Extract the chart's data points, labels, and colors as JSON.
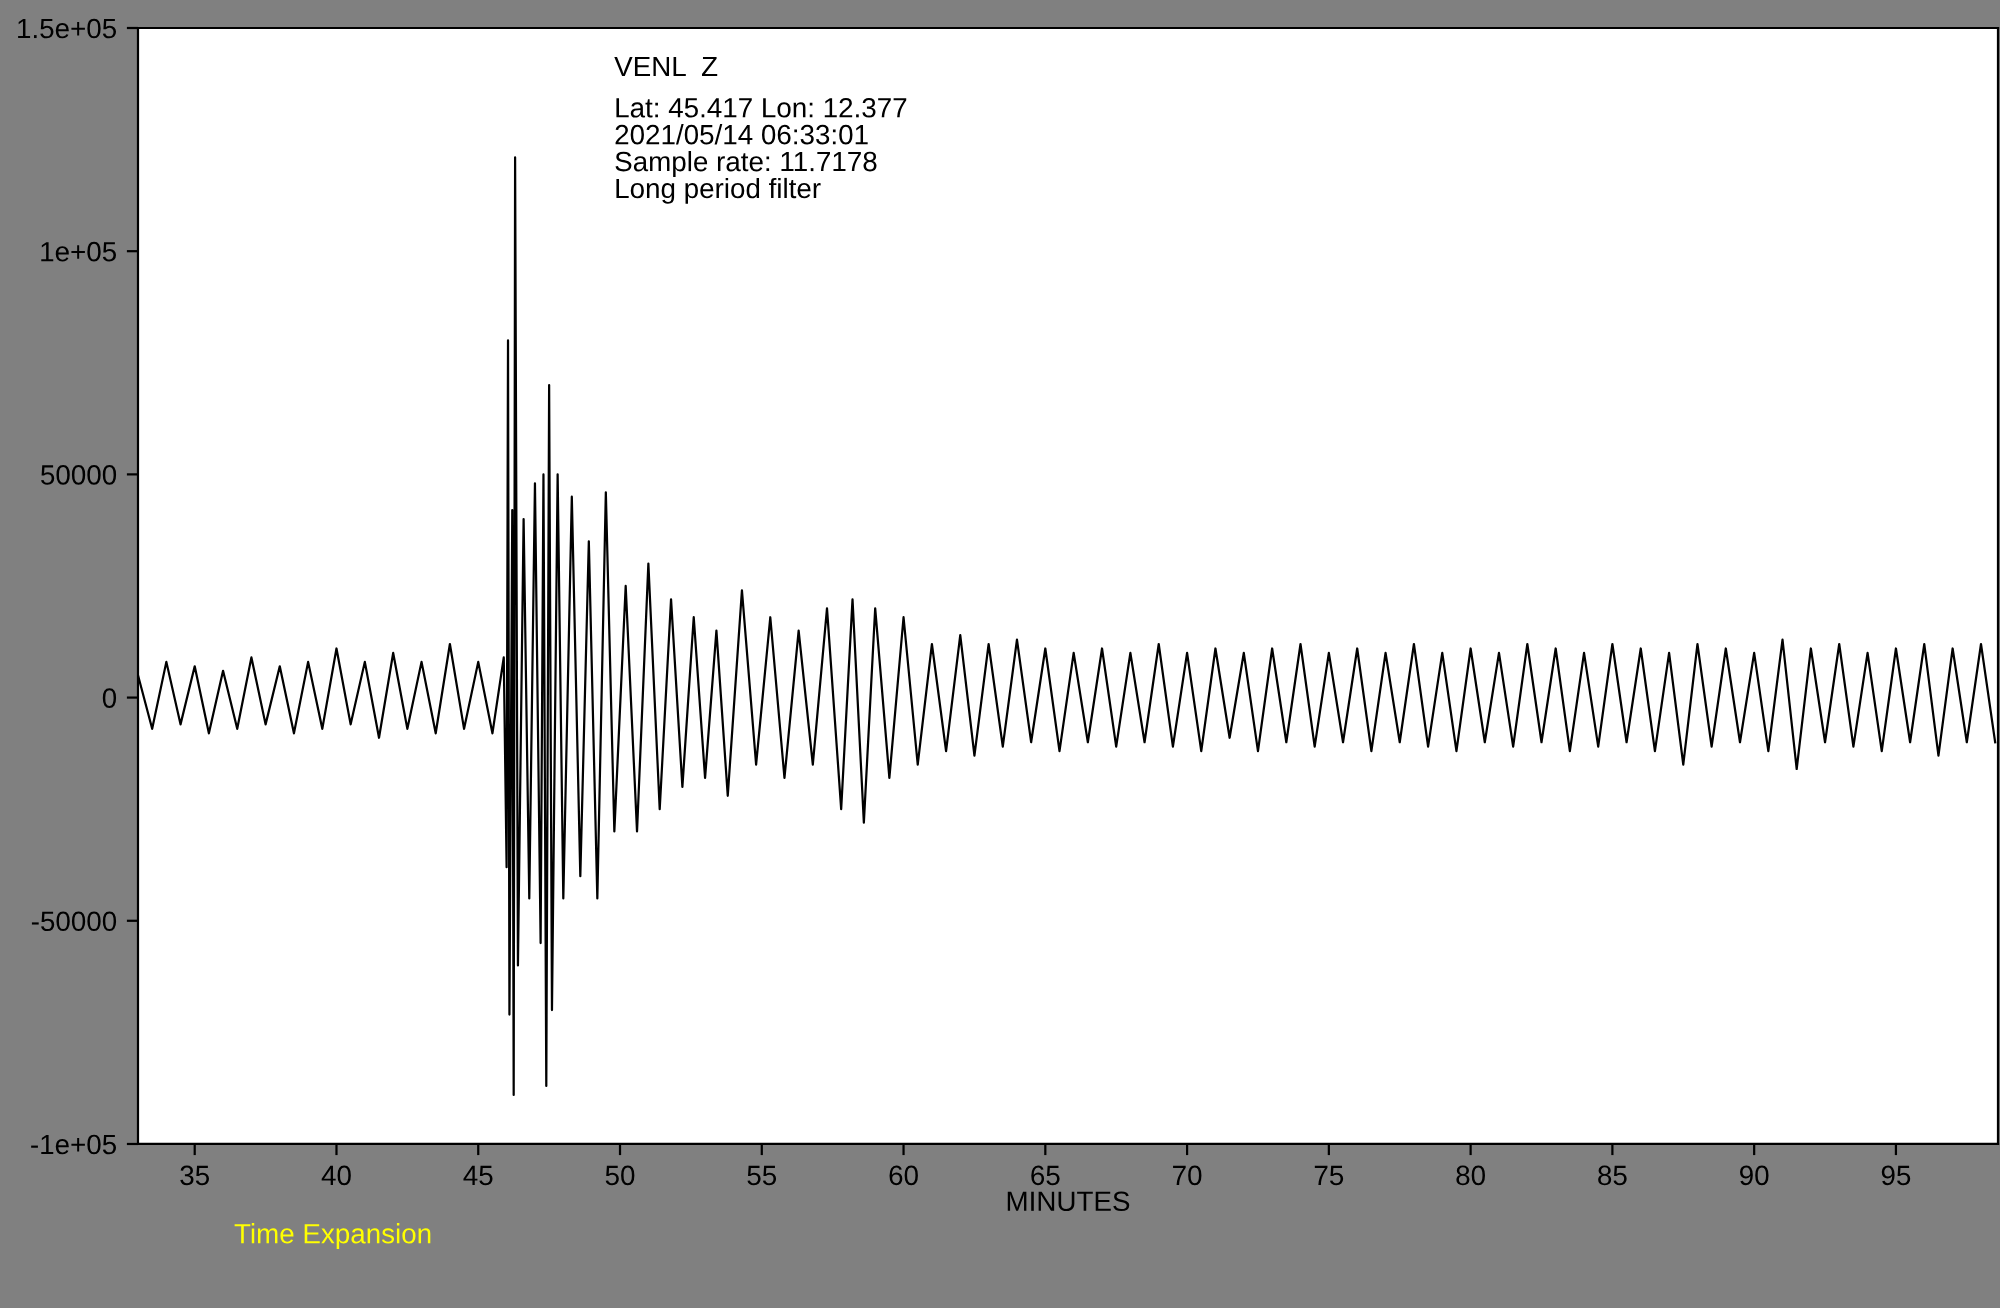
{
  "chart_data": {
    "type": "line",
    "title": "VENL  Z",
    "subtitle": "Lat: 45.417 Lon: 12.377\n2021/05/14 06:33:01\nSample rate: 11.7178\nLong period filter",
    "xlabel": "MINUTES",
    "annotations": [
      "Time Expansion"
    ],
    "xlim": [
      33,
      98.6
    ],
    "xticks": [
      35,
      40,
      45,
      50,
      55,
      60,
      65,
      70,
      75,
      80,
      85,
      90,
      95
    ],
    "ylim": [
      -100000,
      150000
    ],
    "yticks": [
      {
        "value": -100000,
        "label": "-1e+05"
      },
      {
        "value": -50000,
        "label": "-50000"
      },
      {
        "value": 0,
        "label": "0"
      },
      {
        "value": 50000,
        "label": "50000"
      },
      {
        "value": 100000,
        "label": "1e+05"
      },
      {
        "value": 150000,
        "label": "1.5e+05"
      }
    ],
    "grid": false,
    "legend": false,
    "series": [
      {
        "color": "#000000",
        "x": [
          33.0,
          33.5,
          34.0,
          34.5,
          35,
          35.5,
          36,
          36.5,
          37,
          37.5,
          38,
          38.5,
          39,
          39.5,
          40,
          40.5,
          41,
          41.5,
          42,
          42.5,
          43,
          43.5,
          44,
          44.5,
          45,
          45.5,
          45.9,
          46.0,
          46.05,
          46.1,
          46.2,
          46.25,
          46.3,
          46.4,
          46.6,
          46.8,
          47.0,
          47.2,
          47.3,
          47.4,
          47.5,
          47.6,
          47.8,
          48.0,
          48.3,
          48.6,
          48.9,
          49.2,
          49.5,
          49.8,
          50.2,
          50.6,
          51,
          51.4,
          51.8,
          52.2,
          52.6,
          53,
          53.4,
          53.8,
          54.3,
          54.8,
          55.3,
          55.8,
          56.3,
          56.8,
          57.3,
          57.8,
          58.2,
          58.6,
          59,
          59.5,
          60,
          60.5,
          61,
          61.5,
          62,
          62.5,
          63,
          63.5,
          64,
          64.5,
          65,
          65.5,
          66,
          66.5,
          67,
          67.5,
          68,
          68.5,
          69,
          69.5,
          70,
          70.5,
          71,
          71.5,
          72,
          72.5,
          73,
          73.5,
          74,
          74.5,
          75,
          75.5,
          76,
          76.5,
          77,
          77.5,
          78,
          78.5,
          79,
          79.5,
          80,
          80.5,
          81,
          81.5,
          82,
          82.5,
          83,
          83.5,
          84,
          84.5,
          85,
          85.5,
          86,
          86.5,
          87,
          87.5,
          88,
          88.5,
          89,
          89.5,
          90,
          90.5,
          91,
          91.5,
          92,
          92.5,
          93,
          93.5,
          94,
          94.5,
          95,
          95.5,
          96,
          96.5,
          97,
          97.5,
          98,
          98.5
        ],
        "values": [
          5000,
          -7000,
          8000,
          -6000,
          7000,
          -8000,
          6000,
          -7000,
          9000,
          -6000,
          7000,
          -8000,
          8000,
          -7000,
          11000,
          -6000,
          8000,
          -9000,
          10000,
          -7000,
          8000,
          -8000,
          12000,
          -7000,
          8000,
          -8000,
          9000,
          -38000,
          80000,
          -71000,
          42000,
          -89000,
          121000,
          -60000,
          40000,
          -45000,
          48000,
          -55000,
          50000,
          -87000,
          70000,
          -70000,
          50000,
          -45000,
          45000,
          -40000,
          35000,
          -45000,
          46000,
          -30000,
          25000,
          -30000,
          30000,
          -25000,
          22000,
          -20000,
          18000,
          -18000,
          15000,
          -22000,
          24000,
          -15000,
          18000,
          -18000,
          15000,
          -15000,
          20000,
          -25000,
          22000,
          -28000,
          20000,
          -18000,
          18000,
          -15000,
          12000,
          -12000,
          14000,
          -13000,
          12000,
          -11000,
          13000,
          -10000,
          11000,
          -12000,
          10000,
          -10000,
          11000,
          -11000,
          10000,
          -10000,
          12000,
          -11000,
          10000,
          -12000,
          11000,
          -9000,
          10000,
          -12000,
          11000,
          -10000,
          12000,
          -11000,
          10000,
          -10000,
          11000,
          -12000,
          10000,
          -10000,
          12000,
          -11000,
          10000,
          -12000,
          11000,
          -10000,
          10000,
          -11000,
          12000,
          -10000,
          11000,
          -12000,
          10000,
          -11000,
          12000,
          -10000,
          11000,
          -12000,
          10000,
          -15000,
          12000,
          -11000,
          11000,
          -10000,
          10000,
          -12000,
          13000,
          -16000,
          11000,
          -10000,
          12000,
          -11000,
          10000,
          -12000,
          11000,
          -10000,
          12000,
          -13000,
          11000,
          -10000,
          12000,
          -10000
        ]
      }
    ]
  }
}
